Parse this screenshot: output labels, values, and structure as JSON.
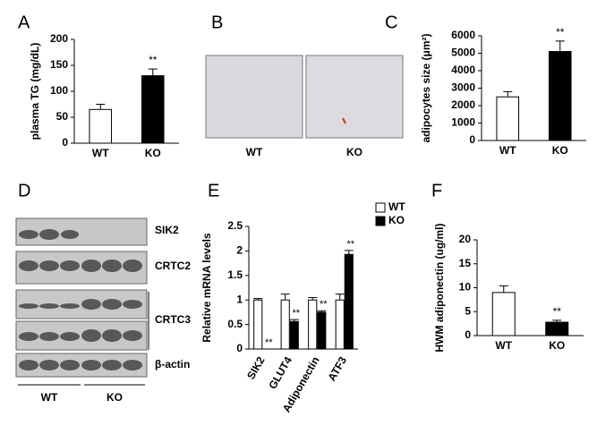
{
  "chart_data": [
    {
      "type": "bar",
      "label": "A",
      "ylabel": "plasma TG (mg/dL)",
      "categories": [
        "WT",
        "KO"
      ],
      "values": [
        65,
        130
      ],
      "errors": [
        10,
        13
      ],
      "colors": [
        "#ffffff",
        "#000000"
      ],
      "significance": [
        null,
        "**"
      ],
      "ylim": [
        0,
        200
      ],
      "yticks": [
        0,
        50,
        100,
        150,
        200
      ]
    },
    {
      "type": "bar",
      "label": "C",
      "ylabel": "adipocytes size (μm²)",
      "categories": [
        "WT",
        "KO"
      ],
      "values": [
        2500,
        5100
      ],
      "errors": [
        300,
        600
      ],
      "colors": [
        "#ffffff",
        "#000000"
      ],
      "significance": [
        null,
        "**"
      ],
      "ylim": [
        0,
        6000
      ],
      "yticks": [
        0,
        1000,
        2000,
        3000,
        4000,
        5000,
        6000
      ]
    },
    {
      "type": "grouped-bar",
      "label": "E",
      "ylabel": "Relative mRNA levels",
      "categories": [
        "SIK2",
        "GLUT4",
        "Adiponectin",
        "ATF3"
      ],
      "series": [
        {
          "name": "WT",
          "color": "#ffffff",
          "values": [
            1.0,
            1.0,
            1.0,
            1.0
          ],
          "errors": [
            0.03,
            0.12,
            0.05,
            0.12
          ],
          "significance": [
            null,
            null,
            null,
            null
          ]
        },
        {
          "name": "KO",
          "color": "#000000",
          "values": [
            0.0,
            0.56,
            0.75,
            1.93
          ],
          "errors": [
            0.0,
            0.04,
            0.03,
            0.08
          ],
          "significance": [
            "**",
            "**",
            "**",
            "**"
          ]
        }
      ],
      "ylim": [
        0,
        2.5
      ],
      "yticks": [
        0,
        0.5,
        1,
        1.5,
        2,
        2.5
      ],
      "legend": "top-right"
    },
    {
      "type": "bar",
      "label": "F",
      "ylabel": "HWM adiponectin (ug/ml)",
      "categories": [
        "WT",
        "KO"
      ],
      "values": [
        9,
        2.8
      ],
      "errors": [
        1.4,
        0.4
      ],
      "colors": [
        "#ffffff",
        "#000000"
      ],
      "significance": [
        null,
        "**"
      ],
      "ylim": [
        0,
        20
      ],
      "yticks": [
        0,
        5,
        10,
        15,
        20
      ]
    }
  ],
  "histology": {
    "label": "B",
    "captions": [
      "WT",
      "KO"
    ]
  },
  "blot": {
    "label": "D",
    "bands": [
      "SIK2",
      "CRTC2",
      "CRTC3",
      "β-actin"
    ],
    "groups": [
      "WT",
      "KO"
    ]
  }
}
